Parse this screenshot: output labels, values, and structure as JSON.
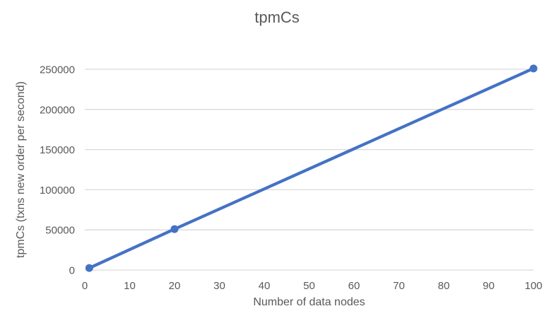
{
  "chart_data": {
    "type": "line",
    "title": "tpmCs",
    "xlabel": "Number of data nodes",
    "ylabel": "tpmCs (txns new order per second)",
    "x": [
      1,
      20,
      100
    ],
    "y": [
      2500,
      51000,
      251000
    ],
    "series_name": "tpmCs",
    "xlim": [
      0,
      100
    ],
    "ylim": [
      0,
      250000
    ],
    "x_ticks": [
      0,
      10,
      20,
      30,
      40,
      50,
      60,
      70,
      80,
      90,
      100
    ],
    "y_ticks": [
      0,
      50000,
      100000,
      150000,
      200000,
      250000
    ],
    "grid": "horizontal",
    "legend": "none",
    "marker": "circle",
    "line_color": "#4472C4",
    "gridline_color": "#D9D9D9",
    "axis_line_color": "#D9D9D9",
    "text_color": "#595959",
    "background_color": "#FFFFFF"
  }
}
